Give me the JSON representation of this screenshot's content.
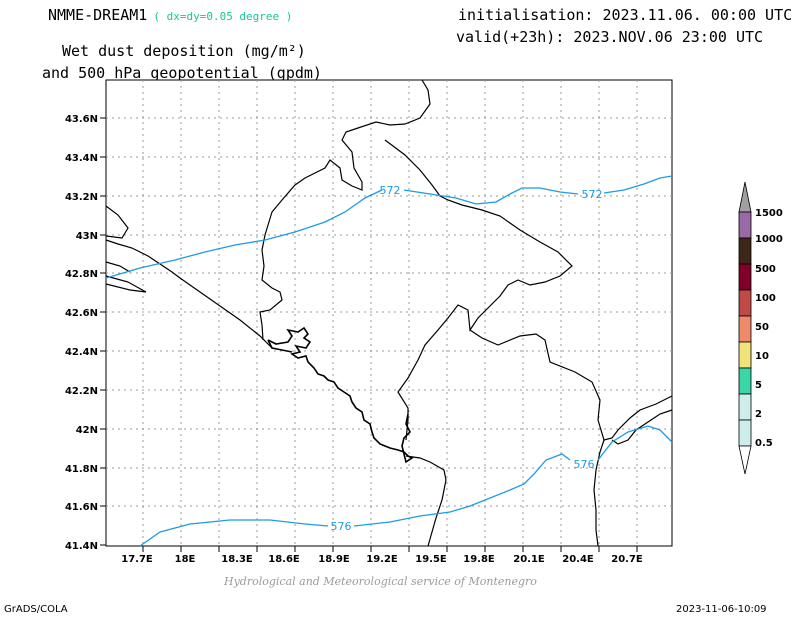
{
  "header": {
    "model_name": "NMME-DREAM1",
    "resolution": "( dx=dy=0.05 degree )",
    "initialisation": "initialisation: 2023.11.06. 00:00 UTC",
    "valid": "valid(+23h): 2023.NOV.06 23:00 UTC",
    "title_line1": "Wet dust deposition (mg/m²)",
    "title_line2": "and 500 hPa geopotential (gpdm)"
  },
  "map": {
    "lat_labels": [
      "43.6N",
      "43.4N",
      "43.2N",
      "43N",
      "42.8N",
      "42.6N",
      "42.4N",
      "42.2N",
      "42N",
      "41.8N",
      "41.6N",
      "41.4N"
    ],
    "lon_labels": [
      "17.7E",
      "18E",
      "18.3E",
      "18.6E",
      "18.9E",
      "19.2E",
      "19.5E",
      "19.8E",
      "20.1E",
      "20.4E",
      "20.7E"
    ],
    "contour_labels": [
      "572",
      "572",
      "576",
      "576"
    ],
    "contour_color": "#1e9be6",
    "grid": true
  },
  "legend": {
    "levels": [
      "1500",
      "1000",
      "500",
      "100",
      "50",
      "10",
      "5",
      "2",
      "0.5"
    ],
    "colors": [
      "#a0a0a0",
      "#9a6aa6",
      "#3d2818",
      "#80002a",
      "#c04a48",
      "#ee8a6a",
      "#f2e27a",
      "#3ad6a6",
      "#cdeeea",
      "#ffffff"
    ]
  },
  "footer": {
    "credit": "Hydrological and Meteorological service of Montenegro",
    "software": "GrADS/COLA",
    "timestamp": "2023-11-06-10:09"
  }
}
